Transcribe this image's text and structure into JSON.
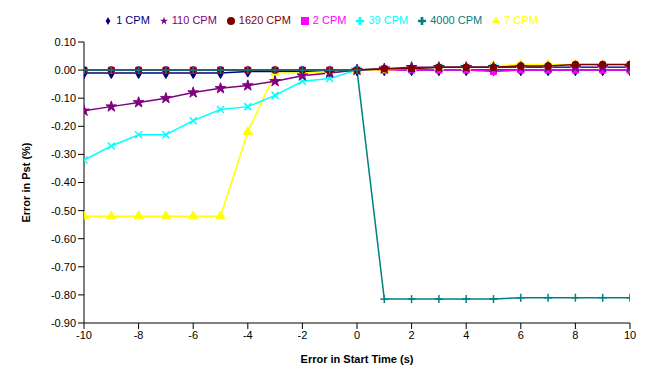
{
  "chart_data": {
    "type": "line",
    "x_label": "Error in Start Time (s)",
    "y_label": "Error in Pst (%)",
    "x": [
      -10,
      -9,
      -8,
      -7,
      -6,
      -5,
      -4,
      -3,
      -2,
      -1,
      0,
      1,
      2,
      3,
      4,
      5,
      6,
      7,
      8,
      9,
      10
    ],
    "xlim": [
      -10,
      10
    ],
    "xticks": [
      -10,
      -8,
      -6,
      -4,
      -2,
      0,
      2,
      4,
      6,
      8,
      10
    ],
    "ylim": [
      -0.9,
      0.1
    ],
    "yticks": [
      {
        "value": 0.1,
        "label": "0.10"
      },
      {
        "value": 0,
        "label": "0.00"
      },
      {
        "value": -0.1,
        "label": "-0.10"
      },
      {
        "value": -0.2,
        "label": "-0.20"
      },
      {
        "value": -0.3,
        "label": "-0.30"
      },
      {
        "value": -0.4,
        "label": "-0.40"
      },
      {
        "value": -0.5,
        "label": "-0.50"
      },
      {
        "value": -0.6,
        "label": "-0.60"
      },
      {
        "value": -0.7,
        "label": "-0.70"
      },
      {
        "value": -0.8,
        "label": "-0.80"
      },
      {
        "value": -0.9,
        "label": "-0.90"
      }
    ],
    "grid": false,
    "legend": "top",
    "series": [
      {
        "name": "1 CPM",
        "color": "#000080",
        "marker": "diamond",
        "values": [
          -0.01,
          -0.01,
          -0.01,
          -0.01,
          -0.01,
          -0.01,
          -0.005,
          -0.005,
          -0.005,
          -0.005,
          0,
          0,
          0,
          0,
          0,
          0,
          0,
          0,
          0,
          0,
          0
        ]
      },
      {
        "name": "2 CPM",
        "color": "#FF00FF",
        "marker": "square",
        "values": [
          0,
          0,
          0,
          0,
          0,
          0,
          0,
          0,
          0,
          0,
          0,
          0,
          0,
          0,
          0,
          -0.005,
          0,
          0,
          0,
          0,
          0
        ]
      },
      {
        "name": "7 CPM",
        "color": "#FFFF00",
        "marker": "triangle",
        "values": [
          -0.52,
          -0.52,
          -0.52,
          -0.52,
          -0.52,
          -0.52,
          -0.22,
          -0.01,
          -0.01,
          -0.005,
          0,
          0,
          0.005,
          0.01,
          0.01,
          0.015,
          0.02,
          0.02,
          0.02,
          0.02,
          0.02
        ]
      },
      {
        "name": "39 CPM",
        "color": "#00FFFF",
        "marker": "x",
        "values": [
          -0.32,
          -0.27,
          -0.23,
          -0.23,
          -0.18,
          -0.14,
          -0.13,
          -0.09,
          -0.04,
          -0.03,
          0,
          0.005,
          0.005,
          0.01,
          0.01,
          0.01,
          0.01,
          0.01,
          0.01,
          0.01,
          0.01
        ]
      },
      {
        "name": "110 CPM",
        "color": "#800080",
        "marker": "star",
        "values": [
          -0.145,
          -0.13,
          -0.115,
          -0.1,
          -0.08,
          -0.065,
          -0.055,
          -0.04,
          -0.02,
          -0.01,
          0,
          0.005,
          0.01,
          0.01,
          0.01,
          0.01,
          0.01,
          0.01,
          0.01,
          0.01,
          0.01
        ]
      },
      {
        "name": "1620 CPM",
        "color": "#800000",
        "marker": "circle",
        "values": [
          0,
          0,
          0,
          0,
          0,
          0,
          0,
          0,
          0,
          0,
          0,
          0.005,
          0.005,
          0.01,
          0.01,
          0.01,
          0.015,
          0.015,
          0.02,
          0.02,
          0.02
        ]
      },
      {
        "name": "4000 CPM",
        "color": "#008080",
        "marker": "plus",
        "values": [
          0,
          0,
          0,
          0,
          0,
          0,
          0,
          0,
          0,
          0,
          0,
          -0.815,
          -0.815,
          -0.815,
          -0.815,
          -0.815,
          -0.81,
          -0.81,
          -0.81,
          -0.81,
          -0.81
        ]
      }
    ]
  }
}
